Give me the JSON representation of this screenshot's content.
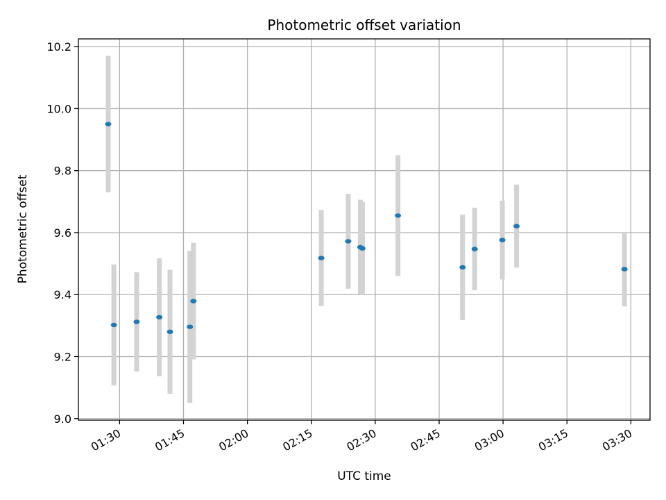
{
  "chart_data": {
    "type": "scatter",
    "title": "Photometric offset variation",
    "xlabel": "UTC time",
    "ylabel": "Photometric offset",
    "xlim": [
      "01:20:20",
      "03:34:30"
    ],
    "ylim": [
      8.995,
      10.225
    ],
    "x_ticks": [
      "01:30",
      "01:45",
      "02:00",
      "02:15",
      "02:30",
      "02:45",
      "03:00",
      "03:15",
      "03:30"
    ],
    "y_ticks": [
      "9.0",
      "9.2",
      "9.4",
      "9.6",
      "9.8",
      "10.0",
      "10.2"
    ],
    "grid": true,
    "legend": "none",
    "colors": {
      "point": "#1f77b4",
      "errorbar": "#d3d3d3",
      "grid": "#b0b0b0"
    },
    "series": [
      {
        "points": [
          {
            "x": "01:27:20",
            "y": 9.95,
            "err": 0.22
          },
          {
            "x": "01:28:40",
            "y": 9.302,
            "err": 0.195
          },
          {
            "x": "01:34:00",
            "y": 9.312,
            "err": 0.16
          },
          {
            "x": "01:39:20",
            "y": 9.327,
            "err": 0.19
          },
          {
            "x": "01:41:50",
            "y": 9.28,
            "err": 0.2
          },
          {
            "x": "01:46:30",
            "y": 9.296,
            "err": 0.245
          },
          {
            "x": "01:47:20",
            "y": 9.379,
            "err": 0.188
          },
          {
            "x": "02:17:20",
            "y": 9.518,
            "err": 0.155
          },
          {
            "x": "02:23:40",
            "y": 9.572,
            "err": 0.153
          },
          {
            "x": "02:26:30",
            "y": 9.553,
            "err": 0.153
          },
          {
            "x": "02:27:00",
            "y": 9.549,
            "err": 0.15
          },
          {
            "x": "02:35:20",
            "y": 9.655,
            "err": 0.195
          },
          {
            "x": "02:50:30",
            "y": 9.488,
            "err": 0.17
          },
          {
            "x": "02:53:20",
            "y": 9.547,
            "err": 0.133
          },
          {
            "x": "02:59:50",
            "y": 9.576,
            "err": 0.127
          },
          {
            "x": "03:03:10",
            "y": 9.621,
            "err": 0.134
          },
          {
            "x": "03:28:30",
            "y": 9.482,
            "err": 0.12
          }
        ]
      }
    ]
  }
}
